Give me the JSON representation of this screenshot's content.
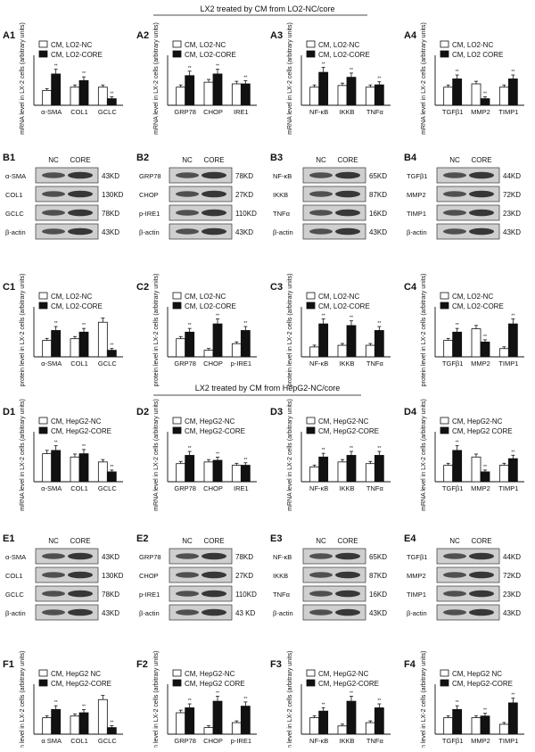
{
  "figure": {
    "header_top": "LX2 treated by CM from LO2-NC/core",
    "header_mid": "LX2 treated by CM from HepG2-NC/core",
    "blot_columns": [
      "NC",
      "CORE"
    ],
    "sig": "**",
    "sig_single": "*",
    "colors": {
      "nc": "#ffffff",
      "core": "#111111",
      "blot_bg": "#cfcfcf",
      "band": "#262626"
    }
  },
  "chart_data": [
    {
      "panel": "A1",
      "type": "bar",
      "ylabel": "mRNA level in LX-2 cells (arbitrary units)",
      "legend": [
        "CM, LO2-NC",
        "CM, LO2-CORE"
      ],
      "categories": [
        "α-SMA",
        "COL1",
        "GCLC"
      ],
      "series": [
        {
          "values": [
            0.45,
            0.55,
            0.55
          ]
        },
        {
          "values": [
            0.95,
            0.75,
            0.2
          ]
        }
      ],
      "ylim": [
        0,
        1.3
      ]
    },
    {
      "panel": "A2",
      "type": "bar",
      "ylabel": "mRNA level in LX-2 cells (arbitrary units)",
      "legend": [
        "CM, LO2-NC",
        "CM, LO2-CORE"
      ],
      "categories": [
        "GRP78",
        "CHOP",
        "IRE1"
      ],
      "series": [
        {
          "values": [
            0.55,
            0.7,
            0.65
          ]
        },
        {
          "values": [
            0.9,
            0.95,
            0.65
          ]
        }
      ],
      "ylim": [
        0,
        1.3
      ]
    },
    {
      "panel": "A3",
      "type": "bar",
      "ylabel": "mRNA level in LX-2 cells (arbitrary units)",
      "legend": [
        "CM, LO2-NC",
        "CM, LO2-CORE"
      ],
      "categories": [
        "NF-κB",
        "IKKB",
        "TNFα"
      ],
      "series": [
        {
          "values": [
            0.55,
            0.6,
            0.55
          ]
        },
        {
          "values": [
            1.0,
            0.85,
            0.62
          ]
        }
      ],
      "ylim": [
        0,
        1.3
      ]
    },
    {
      "panel": "A4",
      "type": "bar",
      "ylabel": "mRNA level in LX-2 cells (arbitrary units)",
      "legend": [
        "CM, LO2-NC",
        "CM, LO2 CORE"
      ],
      "categories": [
        "TGFβ1",
        "MMP2",
        "TIMP1"
      ],
      "series": [
        {
          "values": [
            0.55,
            0.65,
            0.55
          ]
        },
        {
          "values": [
            0.8,
            0.2,
            0.8
          ]
        }
      ],
      "ylim": [
        0,
        1.3
      ]
    },
    {
      "panel": "C1",
      "type": "bar",
      "ylabel": "protein level in LX-2 cells (arbitrary units)",
      "legend": [
        "CM, LO2-NC",
        "CM, LO2-CORE"
      ],
      "categories": [
        "α-SMA",
        "COL1",
        "GCLC"
      ],
      "series": [
        {
          "values": [
            0.5,
            0.55,
            1.05
          ]
        },
        {
          "values": [
            0.8,
            0.75,
            0.2
          ]
        }
      ],
      "ylim": [
        0,
        1.3
      ]
    },
    {
      "panel": "C2",
      "type": "bar",
      "ylabel": "protein level in LX-2 cells (arbitrary units)",
      "legend": [
        "CM, LO2-NC",
        "CM, LO2-CORE"
      ],
      "categories": [
        "GRP78",
        "CHOP",
        "p-IRE1"
      ],
      "series": [
        {
          "values": [
            0.55,
            0.2,
            0.4
          ]
        },
        {
          "values": [
            0.75,
            1.0,
            0.8
          ]
        }
      ],
      "ylim": [
        0,
        1.3
      ]
    },
    {
      "panel": "C3",
      "type": "bar",
      "ylabel": "protein level in LX-2 cells (arbitrary units)",
      "legend": [
        "CM, LO2-NC",
        "CM, LO2-CORE"
      ],
      "categories": [
        "NF-κB",
        "IKKB",
        "TNFα"
      ],
      "series": [
        {
          "values": [
            0.3,
            0.35,
            0.35
          ]
        },
        {
          "values": [
            1.0,
            0.95,
            0.8
          ]
        }
      ],
      "ylim": [
        0,
        1.3
      ]
    },
    {
      "panel": "C4",
      "type": "bar",
      "ylabel": "protein level in LX-2 cells (arbitrary units)",
      "legend": [
        "CM, LO2-NC",
        "CM, LO2-CORE"
      ],
      "categories": [
        "TGFβ1",
        "MMP2",
        "TIMP1"
      ],
      "series": [
        {
          "values": [
            0.5,
            0.85,
            0.25
          ]
        },
        {
          "values": [
            0.75,
            0.45,
            1.0
          ]
        }
      ],
      "ylim": [
        0,
        1.3
      ]
    },
    {
      "panel": "D1",
      "type": "bar",
      "ylabel": "mRNA level in LX-2 cells (arbitrary units)",
      "legend": [
        "CM, HepG2-NC",
        "CM, HepG2-CORE"
      ],
      "categories": [
        "α-SMA",
        "COL1",
        "GCLC"
      ],
      "series": [
        {
          "values": [
            0.85,
            0.75,
            0.6
          ]
        },
        {
          "values": [
            0.95,
            0.85,
            0.3
          ]
        }
      ],
      "ylim": [
        0,
        1.3
      ]
    },
    {
      "panel": "D2",
      "type": "bar",
      "ylabel": "mRNA level in LX-2 cells (arbitrary units)",
      "legend": [
        "CM, HepG2-NC",
        "CM, HepG2-CORE"
      ],
      "categories": [
        "GRP78",
        "CHOP",
        "IRE1"
      ],
      "series": [
        {
          "values": [
            0.55,
            0.6,
            0.5
          ]
        },
        {
          "values": [
            0.8,
            0.65,
            0.5
          ]
        }
      ],
      "ylim": [
        0,
        1.3
      ]
    },
    {
      "panel": "D3",
      "type": "bar",
      "ylabel": "mRNA level in LX-2 cells (arbitrary units)",
      "legend": [
        "CM, HepG2-NC",
        "CM, HepG2-CORE"
      ],
      "categories": [
        "NF-κB",
        "IKKB",
        "TNFα"
      ],
      "series": [
        {
          "values": [
            0.45,
            0.6,
            0.55
          ]
        },
        {
          "values": [
            0.75,
            0.8,
            0.8
          ]
        }
      ],
      "ylim": [
        0,
        1.3
      ]
    },
    {
      "panel": "D4",
      "type": "bar",
      "ylabel": "mRNA level in LX-2 cells (arbitrary units)",
      "legend": [
        "CM, HepG2-NC",
        "CM, HepG2 CORE"
      ],
      "categories": [
        "TGFβ1",
        "MMP2",
        "TIMP1"
      ],
      "series": [
        {
          "values": [
            0.5,
            0.75,
            0.5
          ]
        },
        {
          "values": [
            0.95,
            0.3,
            0.7
          ]
        }
      ],
      "ylim": [
        0,
        1.3
      ]
    },
    {
      "panel": "F1",
      "type": "bar",
      "ylabel": "protein level in LX-2 cells (arbitrary units)",
      "legend": [
        "CM, HepG2 NC",
        "CM, HepG2-CORE"
      ],
      "categories": [
        "α SMA",
        "COL1",
        "GCLC"
      ],
      "series": [
        {
          "values": [
            0.5,
            0.55,
            1.05
          ]
        },
        {
          "values": [
            0.75,
            0.65,
            0.2
          ]
        }
      ],
      "ylim": [
        0,
        1.3
      ]
    },
    {
      "panel": "F2",
      "type": "bar",
      "ylabel": "protein level in LX-2 cells (arbitrary units)",
      "legend": [
        "CM, HepG2-NC",
        "CM, HepG2 CORE"
      ],
      "categories": [
        "GRP78",
        "CHOP",
        "p-IRE1"
      ],
      "series": [
        {
          "values": [
            0.65,
            0.2,
            0.35
          ]
        },
        {
          "values": [
            0.8,
            1.0,
            0.85
          ]
        }
      ],
      "ylim": [
        0,
        1.3
      ]
    },
    {
      "panel": "F3",
      "type": "bar",
      "ylabel": "protein level in LX-2 cells (arbitrary units)",
      "legend": [
        "CM, HepG2-NC",
        "CM, HepG2-CORE"
      ],
      "categories": [
        "NF-κB",
        "IKKB",
        "TNFα"
      ],
      "series": [
        {
          "values": [
            0.5,
            0.25,
            0.35
          ]
        },
        {
          "values": [
            0.7,
            1.0,
            0.8
          ]
        }
      ],
      "ylim": [
        0,
        1.3
      ]
    },
    {
      "panel": "F4",
      "type": "bar",
      "ylabel": "protein level in LX-2 cells (arbitrary units)",
      "legend": [
        "CM, HepG2 NC",
        "CM, HepG2-CORE"
      ],
      "categories": [
        "TGFβ1",
        "MMP2",
        "TIMP1"
      ],
      "series": [
        {
          "values": [
            0.5,
            0.5,
            0.3
          ]
        },
        {
          "values": [
            0.75,
            0.55,
            0.95
          ]
        }
      ],
      "ylim": [
        0,
        1.3
      ]
    }
  ],
  "blots": [
    {
      "panel": "B1",
      "rows": [
        {
          "label": "α-SMA",
          "kd": "43KD"
        },
        {
          "label": "COL1",
          "kd": "130KD"
        },
        {
          "label": "GCLC",
          "kd": "78KD"
        },
        {
          "label": "β-actin",
          "kd": "43KD"
        }
      ]
    },
    {
      "panel": "B2",
      "rows": [
        {
          "label": "GRP78",
          "kd": "78KD"
        },
        {
          "label": "CHOP",
          "kd": "27KD"
        },
        {
          "label": "p-IRE1",
          "kd": "110KD"
        },
        {
          "label": "β-actin",
          "kd": "43KD"
        }
      ]
    },
    {
      "panel": "B3",
      "rows": [
        {
          "label": "NF-κB",
          "kd": "65KD"
        },
        {
          "label": "IKKB",
          "kd": "87KD"
        },
        {
          "label": "TNFα",
          "kd": "16KD"
        },
        {
          "label": "β-actin",
          "kd": "43KD"
        }
      ]
    },
    {
      "panel": "B4",
      "rows": [
        {
          "label": "TGFβ1",
          "kd": "44KD"
        },
        {
          "label": "MMP2",
          "kd": "72KD"
        },
        {
          "label": "TIMP1",
          "kd": "23KD"
        },
        {
          "label": "β-actin",
          "kd": "43KD"
        }
      ]
    },
    {
      "panel": "E1",
      "rows": [
        {
          "label": "α-SMA",
          "kd": "43KD"
        },
        {
          "label": "COL1",
          "kd": "130KD"
        },
        {
          "label": "GCLC",
          "kd": "78KD"
        },
        {
          "label": "β-actin",
          "kd": "43KD"
        }
      ]
    },
    {
      "panel": "E2",
      "rows": [
        {
          "label": "GRP78",
          "kd": "78KD"
        },
        {
          "label": "CHOP",
          "kd": "27KD"
        },
        {
          "label": "p-IRE1",
          "kd": "110KD"
        },
        {
          "label": "β-actin",
          "kd": "43 KD"
        }
      ]
    },
    {
      "panel": "E3",
      "rows": [
        {
          "label": "NF-κB",
          "kd": "65KD"
        },
        {
          "label": "IKKB",
          "kd": "87KD"
        },
        {
          "label": "TNFα",
          "kd": "16KD"
        },
        {
          "label": "β-actin",
          "kd": "43KD"
        }
      ]
    },
    {
      "panel": "E4",
      "rows": [
        {
          "label": "TGFβ1",
          "kd": "44KD"
        },
        {
          "label": "MMP2",
          "kd": "72KD"
        },
        {
          "label": "TIMP1",
          "kd": "23KD"
        },
        {
          "label": "β-actin",
          "kd": "43KD"
        }
      ]
    }
  ]
}
